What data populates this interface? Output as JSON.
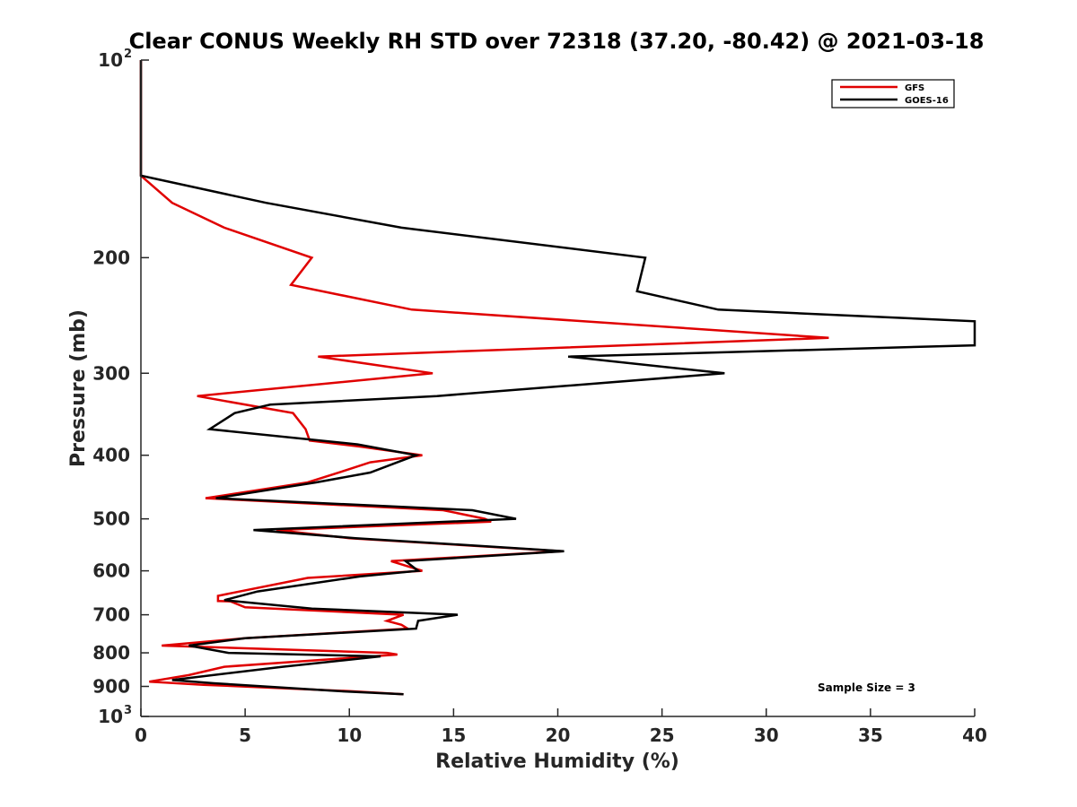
{
  "chart_data": {
    "type": "line",
    "title": "Clear CONUS Weekly RH STD over 72318 (37.20, -80.42) @ 2021-03-18",
    "xlabel": "Relative Humidity (%)",
    "ylabel": "Pressure (mb)",
    "xlim": [
      0,
      40
    ],
    "ylim": [
      100,
      1000
    ],
    "y_scale": "log",
    "y_reversed": true,
    "grid": false,
    "legend_position": "top-right",
    "x_ticks": [
      "0",
      "5",
      "10",
      "15",
      "20",
      "25",
      "30",
      "35",
      "40"
    ],
    "y_ticks": [
      {
        "value": 100,
        "label": "10",
        "exp": "2"
      },
      {
        "value": 200,
        "label": "200",
        "exp": ""
      },
      {
        "value": 300,
        "label": "300",
        "exp": ""
      },
      {
        "value": 400,
        "label": "400",
        "exp": ""
      },
      {
        "value": 500,
        "label": "500",
        "exp": ""
      },
      {
        "value": 600,
        "label": "600",
        "exp": ""
      },
      {
        "value": 700,
        "label": "700",
        "exp": ""
      },
      {
        "value": 800,
        "label": "800",
        "exp": ""
      },
      {
        "value": 900,
        "label": "900",
        "exp": ""
      },
      {
        "value": 1000,
        "label": "10",
        "exp": "3"
      }
    ],
    "annotation": "Sample Size = 3",
    "series": [
      {
        "name": "GFS",
        "color": "#e00000",
        "points": [
          [
            0.0,
            100
          ],
          [
            0.0,
            150
          ],
          [
            1.5,
            165
          ],
          [
            4.0,
            180
          ],
          [
            8.2,
            200
          ],
          [
            7.2,
            220
          ],
          [
            13.0,
            240
          ],
          [
            33.0,
            265
          ],
          [
            8.5,
            283
          ],
          [
            14.0,
            300
          ],
          [
            2.7,
            325
          ],
          [
            7.3,
            345
          ],
          [
            7.9,
            365
          ],
          [
            8.1,
            380
          ],
          [
            10.5,
            388
          ],
          [
            13.5,
            400
          ],
          [
            11.0,
            410
          ],
          [
            9.8,
            422
          ],
          [
            8.0,
            440
          ],
          [
            3.1,
            465
          ],
          [
            14.5,
            485
          ],
          [
            16.5,
            500
          ],
          [
            16.8,
            505
          ],
          [
            6.5,
            520
          ],
          [
            10.0,
            535
          ],
          [
            20.2,
            560
          ],
          [
            12.0,
            580
          ],
          [
            13.5,
            600
          ],
          [
            8.0,
            615
          ],
          [
            3.7,
            655
          ],
          [
            3.7,
            667
          ],
          [
            4.3,
            668
          ],
          [
            5.0,
            682
          ],
          [
            12.6,
            700
          ],
          [
            11.8,
            715
          ],
          [
            12.5,
            725
          ],
          [
            12.8,
            735
          ],
          [
            5.0,
            760
          ],
          [
            1.0,
            780
          ],
          [
            11.8,
            800
          ],
          [
            12.3,
            805
          ],
          [
            4.0,
            840
          ],
          [
            2.3,
            865
          ],
          [
            0.4,
            885
          ],
          [
            3.0,
            895
          ],
          [
            10.0,
            915
          ],
          [
            12.6,
            925
          ]
        ]
      },
      {
        "name": "GOES-16",
        "color": "#000000",
        "points": [
          [
            0.0,
            100
          ],
          [
            0.0,
            150
          ],
          [
            6.0,
            165
          ],
          [
            12.5,
            180
          ],
          [
            24.2,
            200
          ],
          [
            23.8,
            225
          ],
          [
            27.7,
            240
          ],
          [
            40.0,
            250
          ],
          [
            40.0,
            272
          ],
          [
            20.5,
            283
          ],
          [
            28.0,
            300
          ],
          [
            14.2,
            325
          ],
          [
            6.2,
            335
          ],
          [
            4.5,
            345
          ],
          [
            3.3,
            365
          ],
          [
            10.4,
            385
          ],
          [
            13.2,
            400
          ],
          [
            12.3,
            410
          ],
          [
            11.0,
            425
          ],
          [
            8.4,
            440
          ],
          [
            3.6,
            465
          ],
          [
            15.9,
            485
          ],
          [
            18.0,
            500
          ],
          [
            5.4,
            520
          ],
          [
            10.3,
            535
          ],
          [
            20.3,
            560
          ],
          [
            12.7,
            580
          ],
          [
            13.3,
            600
          ],
          [
            10.5,
            612
          ],
          [
            5.6,
            645
          ],
          [
            4.0,
            665
          ],
          [
            8.2,
            685
          ],
          [
            15.2,
            700
          ],
          [
            13.3,
            715
          ],
          [
            13.2,
            735
          ],
          [
            5.0,
            760
          ],
          [
            2.3,
            780
          ],
          [
            4.2,
            800
          ],
          [
            11.5,
            810
          ],
          [
            6.8,
            840
          ],
          [
            1.5,
            880
          ],
          [
            3.5,
            890
          ],
          [
            9.5,
            915
          ],
          [
            12.6,
            925
          ]
        ]
      }
    ]
  }
}
